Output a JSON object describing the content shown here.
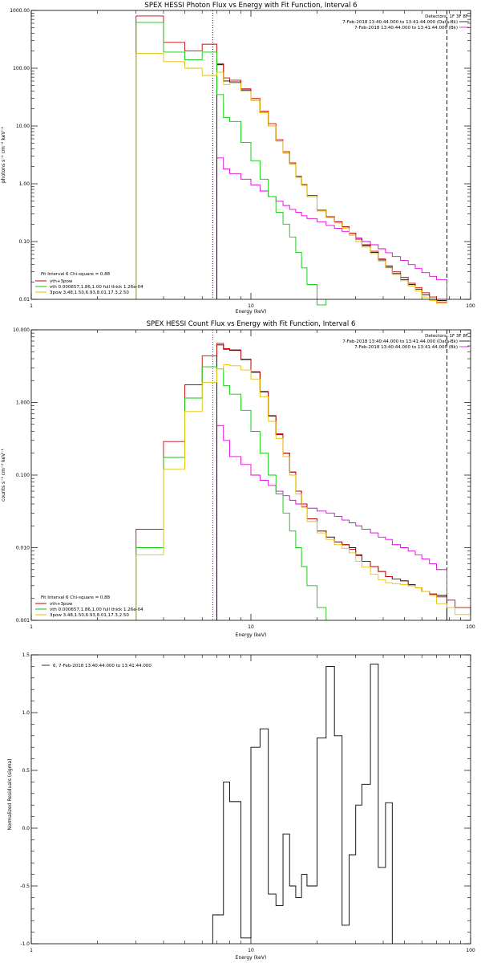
{
  "chart_data": [
    {
      "type": "line",
      "title": "SPEX HESSI Photon Flux vs Energy with Fit Function, Interval 6",
      "xlabel": "Energy (keV)",
      "ylabel": "photons s⁻¹ cm⁻² keV⁻¹",
      "xscale": "log",
      "yscale": "log",
      "xlim": [
        1,
        100
      ],
      "ylim": [
        0.01,
        1000
      ],
      "xticks": [
        {
          "v": 1,
          "label": "1"
        },
        {
          "v": 10,
          "label": "10"
        },
        {
          "v": 100,
          "label": "100"
        }
      ],
      "yticks": [
        {
          "v": 0.01,
          "label": "0.01"
        },
        {
          "v": 0.1,
          "label": "0.10"
        },
        {
          "v": 1,
          "label": "1.00"
        },
        {
          "v": 10,
          "label": "10.00"
        },
        {
          "v": 100,
          "label": "100.00"
        },
        {
          "v": 1000,
          "label": "1000.00"
        }
      ],
      "vlines": [
        {
          "x": 6.7,
          "style": "dotted",
          "color": "#000000"
        },
        {
          "x": 6.7,
          "style": "dotted",
          "color": "#8b0080"
        },
        {
          "x": 78,
          "style": "dashed",
          "color": "#000000"
        }
      ],
      "info_lines": [
        "Detectors: 1F 3F 8F",
        "7-Feb-2018 13:40:44.000 to 13:41:44.000 (Data-Bk)",
        "7-Feb-2018 13:40:44.000 to 13:41:44.000 (Bk)"
      ],
      "fit_text": "Fit Interval 6   Chi-square = 0.88",
      "edges": [
        3,
        4,
        5,
        6,
        7,
        7.5,
        8,
        9,
        10,
        11,
        12,
        13,
        14,
        15,
        16,
        17,
        18,
        20,
        22,
        24,
        26,
        28,
        30,
        32,
        35,
        38,
        41,
        44,
        48,
        52,
        56,
        60,
        65,
        70,
        78
      ],
      "series": [
        {
          "name": "Data-Bk",
          "color": "#000000",
          "from": 6.7,
          "values": [
            0,
            0,
            0,
            0,
            115,
            60,
            58,
            42,
            28,
            17,
            10,
            5.5,
            3.4,
            2.2,
            1.3,
            0.95,
            0.6,
            0.34,
            0.27,
            0.22,
            0.18,
            0.14,
            0.11,
            0.085,
            0.065,
            0.048,
            0.036,
            0.028,
            0.022,
            0.018,
            0.015,
            0.012,
            0.01,
            0.0095
          ]
        },
        {
          "name": "Bk",
          "color": "#dd00dd",
          "from": 6.7,
          "values": [
            0,
            0,
            0,
            0,
            2.8,
            1.8,
            1.5,
            1.2,
            0.95,
            0.75,
            0.6,
            0.5,
            0.42,
            0.36,
            0.32,
            0.28,
            0.25,
            0.22,
            0.19,
            0.17,
            0.15,
            0.13,
            0.115,
            0.1,
            0.088,
            0.075,
            0.064,
            0.055,
            0.047,
            0.04,
            0.034,
            0.029,
            0.025,
            0.022
          ]
        },
        {
          "name": "vth+3pow",
          "color": "#cc0000",
          "values": [
            800,
            280,
            200,
            260,
            120,
            68,
            62,
            44,
            30,
            18,
            11,
            5.8,
            3.6,
            2.3,
            1.35,
            0.97,
            0.63,
            0.35,
            0.27,
            0.22,
            0.18,
            0.14,
            0.11,
            0.088,
            0.068,
            0.05,
            0.038,
            0.03,
            0.024,
            0.019,
            0.016,
            0.013,
            0.011,
            0.009
          ]
        },
        {
          "name": "vth 0.000657,1.86,1.00  full thick 1.26e-04",
          "color": "#00cc00",
          "values": [
            620,
            190,
            140,
            190,
            35,
            14,
            12,
            5.2,
            2.5,
            1.2,
            0.6,
            0.32,
            0.2,
            0.12,
            0.065,
            0.035,
            0.018,
            0.008
          ]
        },
        {
          "name": "3pow 3.48,1.50,6.93,8.01,17.3,2.50",
          "color": "#e6c200",
          "values": [
            180,
            130,
            100,
            75,
            85,
            52,
            55,
            40,
            28,
            17,
            10,
            5.5,
            3.4,
            2.2,
            1.3,
            0.94,
            0.6,
            0.34,
            0.26,
            0.21,
            0.17,
            0.13,
            0.1,
            0.08,
            0.062,
            0.046,
            0.035,
            0.027,
            0.021,
            0.017,
            0.014,
            0.011,
            0.0095,
            0.0085
          ]
        }
      ]
    },
    {
      "type": "line",
      "title": "SPEX HESSI Count Flux vs Energy with Fit Function, Interval 6",
      "xlabel": "Energy (keV)",
      "ylabel": "counts s⁻¹ cm⁻² keV⁻¹",
      "xscale": "log",
      "yscale": "log",
      "xlim": [
        1,
        100
      ],
      "ylim": [
        0.001,
        10
      ],
      "xticks": [
        {
          "v": 1,
          "label": "1"
        },
        {
          "v": 10,
          "label": "10"
        },
        {
          "v": 100,
          "label": "100"
        }
      ],
      "yticks": [
        {
          "v": 0.001,
          "label": "0.001"
        },
        {
          "v": 0.01,
          "label": "0.010"
        },
        {
          "v": 0.1,
          "label": "0.100"
        },
        {
          "v": 1,
          "label": "1.000"
        },
        {
          "v": 10,
          "label": "10.000"
        }
      ],
      "vlines": [
        {
          "x": 6.7,
          "style": "dotted",
          "color": "#8b0080"
        },
        {
          "x": 78,
          "style": "dashed",
          "color": "#000000"
        }
      ],
      "info_lines": [
        "Detectors: 1F 3F 8F",
        "7-Feb-2018 13:40:44.000 to 13:41:44.000 (Data-Bk)",
        "7-Feb-2018 13:40:44.000 to 13:41:44.000 (Bk)"
      ],
      "fit_text": "Fit Interval 6   Chi-square = 0.88",
      "edges": [
        3,
        4,
        5,
        6,
        7,
        7.5,
        8,
        9,
        10,
        11,
        12,
        13,
        14,
        15,
        16,
        17,
        18,
        20,
        22,
        24,
        26,
        28,
        30,
        32,
        35,
        38,
        41,
        44,
        48,
        52,
        56,
        60,
        65,
        70,
        78,
        85,
        100
      ],
      "series": [
        {
          "name": "Data-Bk",
          "color": "#000000",
          "from": 6.7,
          "values": [
            0,
            0,
            0,
            0,
            6.2,
            5.4,
            5.2,
            3.9,
            2.6,
            1.4,
            0.65,
            0.36,
            0.2,
            0.11,
            0.06,
            0.04,
            0.025,
            0.017,
            0.014,
            0.012,
            0.011,
            0.01,
            0.008,
            0.0065,
            0.0055,
            0.0047,
            0.004,
            0.0037,
            0.0035,
            0.0031,
            0.0028,
            0.0025,
            0.0023,
            0.0022
          ]
        },
        {
          "name": "Bk",
          "color": "#dd00dd",
          "from": 6.7,
          "values": [
            0,
            0,
            0,
            0,
            0.48,
            0.3,
            0.18,
            0.14,
            0.1,
            0.085,
            0.072,
            0.06,
            0.052,
            0.045,
            0.04,
            0.037,
            0.035,
            0.032,
            0.03,
            0.027,
            0.024,
            0.022,
            0.02,
            0.018,
            0.016,
            0.014,
            0.013,
            0.011,
            0.01,
            0.009,
            0.008,
            0.007,
            0.006,
            0.005
          ]
        },
        {
          "name": "vth+3pow",
          "color": "#cc0000",
          "values": [
            0.018,
            0.29,
            1.75,
            4.4,
            6.5,
            5.5,
            5.3,
            3.95,
            2.65,
            1.42,
            0.66,
            0.37,
            0.2,
            0.11,
            0.06,
            0.04,
            0.025,
            0.017,
            0.014,
            0.012,
            0.011,
            0.0095,
            0.0078,
            0.0065,
            0.0055,
            0.0047,
            0.004,
            0.0037,
            0.0035,
            0.003,
            0.0028,
            0.0025,
            0.0023,
            0.0021,
            0.0019,
            0.0015
          ]
        },
        {
          "name": "vth 0.000657,1.86,1.00  full thick 1.26e-04",
          "color": "#00cc00",
          "values": [
            0.01,
            0.175,
            1.15,
            3.1,
            2.9,
            1.7,
            1.3,
            0.78,
            0.4,
            0.2,
            0.1,
            0.055,
            0.03,
            0.017,
            0.01,
            0.0055,
            0.003,
            0.0015
          ]
        },
        {
          "name": "3pow 3.48,1.50,6.93,8.01,17.3,2.50",
          "color": "#e6c200",
          "values": [
            0.008,
            0.12,
            0.75,
            1.9,
            2.9,
            3.3,
            3.2,
            2.8,
            2.1,
            1.2,
            0.55,
            0.32,
            0.18,
            0.1,
            0.055,
            0.036,
            0.023,
            0.016,
            0.013,
            0.011,
            0.0098,
            0.0085,
            0.0065,
            0.0054,
            0.0043,
            0.0036,
            0.0033,
            0.0032,
            0.0031,
            0.003,
            0.0028,
            0.0025,
            0.0022,
            0.0017,
            0.0015,
            0.0012
          ]
        }
      ]
    },
    {
      "type": "line",
      "title": "",
      "xlabel": "Energy (keV)",
      "ylabel": "Normalized Residuals (sigma)",
      "xscale": "log",
      "yscale": "linear",
      "xlim": [
        1,
        100
      ],
      "ylim": [
        -1.0,
        1.5
      ],
      "xticks": [
        {
          "v": 1,
          "label": "1"
        },
        {
          "v": 10,
          "label": "10"
        },
        {
          "v": 100,
          "label": "100"
        }
      ],
      "yticks": [
        {
          "v": -1.0,
          "label": "-1.0"
        },
        {
          "v": -0.5,
          "label": "-0.5"
        },
        {
          "v": 0,
          "label": "0.0"
        },
        {
          "v": 0.5,
          "label": "0.5"
        },
        {
          "v": 1.0,
          "label": "1.0"
        },
        {
          "v": 1.5,
          "label": "1.5"
        }
      ],
      "legend": "6, 7-Feb-2018 13:40:44.000 to 13:41:44.000",
      "edges": [
        6.7,
        7.5,
        8,
        9,
        10,
        11,
        12,
        13,
        14,
        15,
        16,
        17,
        18,
        20,
        22,
        24,
        26,
        28,
        30,
        32,
        35,
        38,
        41,
        44,
        48,
        52,
        56,
        60,
        65,
        70,
        78
      ],
      "series": [
        {
          "name": "",
          "color": "#000000",
          "values": [
            -0.75,
            0.4,
            0.23,
            -0.95,
            0.7,
            0.86,
            -0.57,
            -0.67,
            -0.05,
            -0.5,
            -0.6,
            -0.4,
            -0.5,
            0.78,
            1.4,
            0.8,
            -0.84,
            -0.23,
            0.2,
            0.38,
            1.42,
            -0.34,
            0.22
          ]
        }
      ]
    }
  ]
}
